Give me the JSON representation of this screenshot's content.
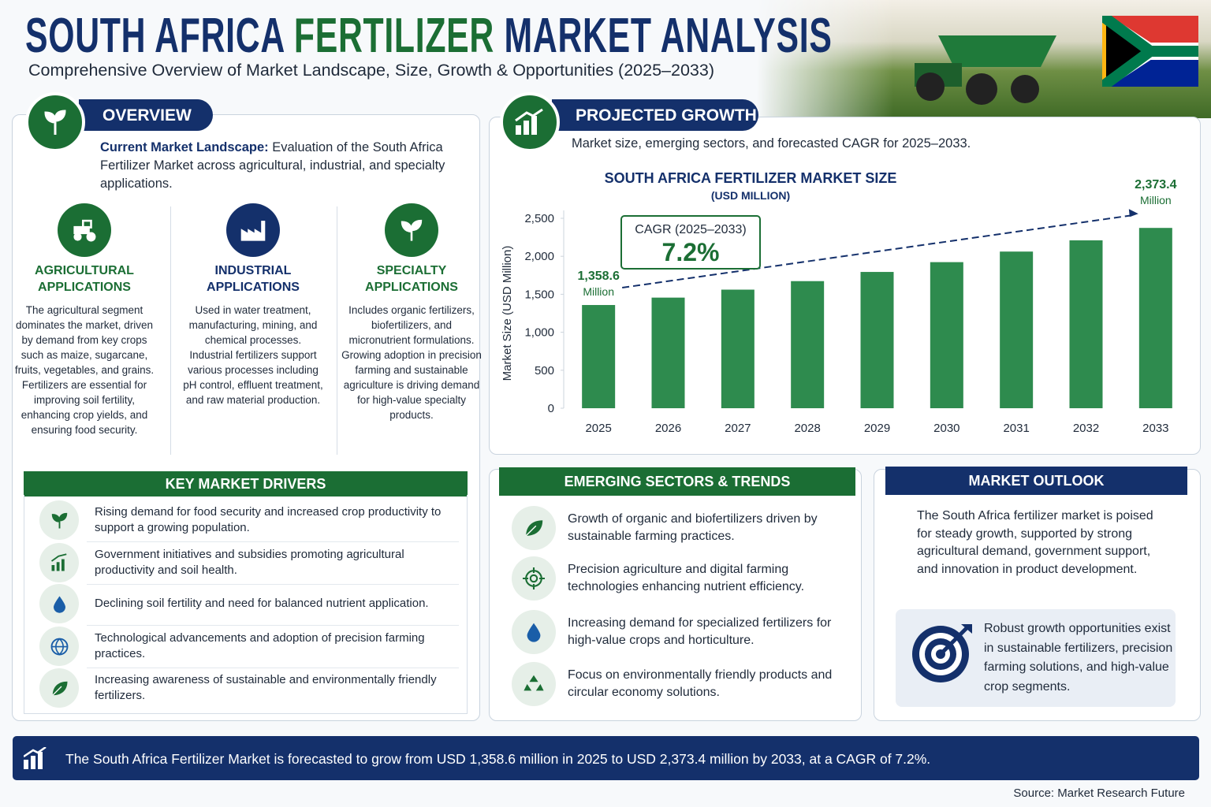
{
  "header": {
    "title_start": "SOUTH AFRICA",
    "title_highlight": "FERTILIZER",
    "title_end": "MARKET ANALYSIS",
    "subtitle": "Comprehensive Overview of Market Landscape, Size, Growth & Opportunities (2025–2033)"
  },
  "overview": {
    "heading": "OVERVIEW",
    "intro_label": "Current Market Landscape:",
    "intro_text": "Evaluation of the South Africa Fertilizer Market across agricultural, industrial, and specialty applications.",
    "columns": [
      {
        "title": "AGRICULTURAL APPLICATIONS",
        "text": "The agricultural segment dominates the market, driven by demand from key crops such as maize, sugarcane, fruits, vegetables, and grains. Fertilizers are essential for improving soil fertility, enhancing crop yields, and ensuring food security."
      },
      {
        "title": "INDUSTRIAL APPLICATIONS",
        "text": "Used in water treatment, manufacturing, mining, and chemical processes. Industrial fertilizers support various processes including pH control, effluent treatment, and raw material production."
      },
      {
        "title": "SPECIALTY APPLICATIONS",
        "text": "Includes organic fertilizers, biofertilizers, and micronutrient formulations. Growing adoption in precision farming and sustainable agriculture is driving demand for high-value specialty products."
      }
    ]
  },
  "drivers": {
    "heading": "KEY MARKET DRIVERS",
    "items": [
      "Rising demand for food security and increased crop productivity to support a growing population.",
      "Government initiatives and subsidies promoting agricultural productivity and soil health.",
      "Declining soil fertility and need for balanced nutrient application.",
      "Technological advancements and adoption of precision farming practices.",
      "Increasing awareness of sustainable and environmentally friendly fertilizers."
    ]
  },
  "growth": {
    "heading": "PROJECTED GROWTH",
    "description": "Market size, emerging sectors, and forecasted CAGR for 2025–2033."
  },
  "chart_data": {
    "type": "bar",
    "title": "SOUTH AFRICA FERTILIZER MARKET SIZE",
    "subtitle": "(USD MILLION)",
    "y_label": "Market Size (USD Million)",
    "categories": [
      "2025",
      "2026",
      "2027",
      "2028",
      "2029",
      "2030",
      "2031",
      "2032",
      "2033"
    ],
    "values": [
      1358.6,
      1456,
      1561,
      1673,
      1794,
      1923,
      2062,
      2210,
      2373.4
    ],
    "value_labels": [
      "1,358.6",
      null,
      null,
      null,
      null,
      null,
      null,
      null,
      "2,373.4"
    ],
    "value_label_unit": "Million",
    "color": "#2e8b4e",
    "ylim": [
      0,
      2500
    ],
    "yticks": [
      0,
      500,
      {
        "value": 1000,
        "label": "1,000"
      },
      {
        "value": 1500,
        "label": "1,500"
      },
      {
        "value": 2000,
        "label": "2,000"
      },
      {
        "value": 2500,
        "label": "2,500"
      }
    ],
    "annotation": {
      "label": "CAGR (2025–2033)",
      "value": "7.2%"
    }
  },
  "trends": {
    "heading": "EMERGING SECTORS & TRENDS",
    "items": [
      "Growth of organic and biofertilizers driven by sustainable farming practices.",
      "Precision agriculture and digital farming technologies enhancing nutrient efficiency.",
      "Increasing demand for specialized fertilizers for high-value crops and horticulture.",
      "Focus on environmentally friendly products and circular economy solutions."
    ]
  },
  "outlook": {
    "heading": "MARKET OUTLOOK",
    "text": "The South Africa fertilizer market is poised for steady growth, supported by strong agricultural demand, government support, and innovation in product development.",
    "highlight": "Robust growth opportunities exist in sustainable fertilizers, precision farming solutions, and high-value crop segments."
  },
  "footer": {
    "banner": "The South Africa Fertilizer Market is forecasted to grow from USD 1,358.6 million in 2025 to USD 2,373.4 million by 2033, at a CAGR of 7.2%.",
    "source": "Source: Market Research Future"
  }
}
